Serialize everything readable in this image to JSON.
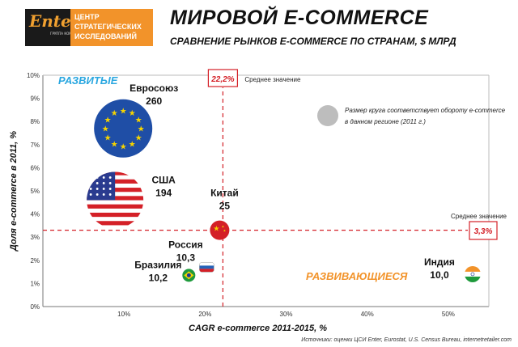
{
  "logo": {
    "word": "Enter",
    "sub": "ГРУППА КОМПАНИЙ",
    "lines": [
      "ЦЕНТР",
      "СТРАТЕГИЧЕСКИХ",
      "ИССЛЕДОВАНИЙ"
    ]
  },
  "title": "МИРОВОЙ E-COMMERCE",
  "subtitle": "СРАВНЕНИЕ РЫНКОВ E-COMMERCE ПО СТРАНАМ, $ МЛРД",
  "source": "Источники: оценки ЦСИ Enter, Eurostat, U.S. Census Bureau, internetretailer.com",
  "colors": {
    "accent_red": "#d42027",
    "dev_blue": "#2aa7e0",
    "emerging_orange": "#f2932a",
    "legend_gray": "#bdbdbd"
  },
  "chart_data": {
    "type": "scatter",
    "title": "МИРОВОЙ E-COMMERCE",
    "subtitle": "СРАВНЕНИЕ РЫНКОВ E-COMMERCE ПО СТРАНАМ, $ МЛРД",
    "xlabel": "CAGR e-commerce 2011-2015, %",
    "ylabel": "Доля e-commerce в 2011, %",
    "xlim": [
      0,
      55
    ],
    "ylim": [
      0,
      10
    ],
    "x_ticks": [
      10,
      20,
      30,
      40,
      50
    ],
    "x_tick_labels": [
      "10%",
      "20%",
      "30%",
      "40%",
      "50%"
    ],
    "y_ticks": [
      0,
      1,
      2,
      3,
      4,
      5,
      6,
      7,
      8,
      9,
      10
    ],
    "y_tick_labels": [
      "0%",
      "1%",
      "2%",
      "3%",
      "4%",
      "5%",
      "6%",
      "7%",
      "8%",
      "9%",
      "10%"
    ],
    "grid": false,
    "reference_lines": {
      "x_average": 22.2,
      "x_average_label": "22,2%",
      "y_average": 3.3,
      "y_average_label": "3,3%",
      "average_text": "Среднее значение"
    },
    "quadrant_labels": {
      "developed": "РАЗВИТЫЕ",
      "emerging": "РАЗВИВАЮЩИЕСЯ"
    },
    "legend_note": "Размер круга соответствует обороту e-commerce в данном регионе (2011 г.)",
    "points": [
      {
        "name": "Евросоюз",
        "value": 260,
        "value_label": "260",
        "x": 9.9,
        "y": 7.7,
        "icon": "eu-flag-icon"
      },
      {
        "name": "США",
        "value": 194,
        "value_label": "194",
        "x": 8.9,
        "y": 4.6,
        "icon": "us-flag-icon"
      },
      {
        "name": "Китай",
        "value": 25,
        "value_label": "25",
        "x": 21.8,
        "y": 3.3,
        "icon": "china-flag-icon"
      },
      {
        "name": "Россия",
        "value": 10.3,
        "value_label": "10,3",
        "x": 20.2,
        "y": 1.7,
        "icon": "russia-flag-icon"
      },
      {
        "name": "Бразилия",
        "value": 10.2,
        "value_label": "10,2",
        "x": 18.0,
        "y": 1.35,
        "icon": "brazil-flag-icon"
      },
      {
        "name": "Индия",
        "value": 10.0,
        "value_label": "10,0",
        "x": 53.0,
        "y": 1.4,
        "icon": "india-flag-icon"
      }
    ]
  }
}
